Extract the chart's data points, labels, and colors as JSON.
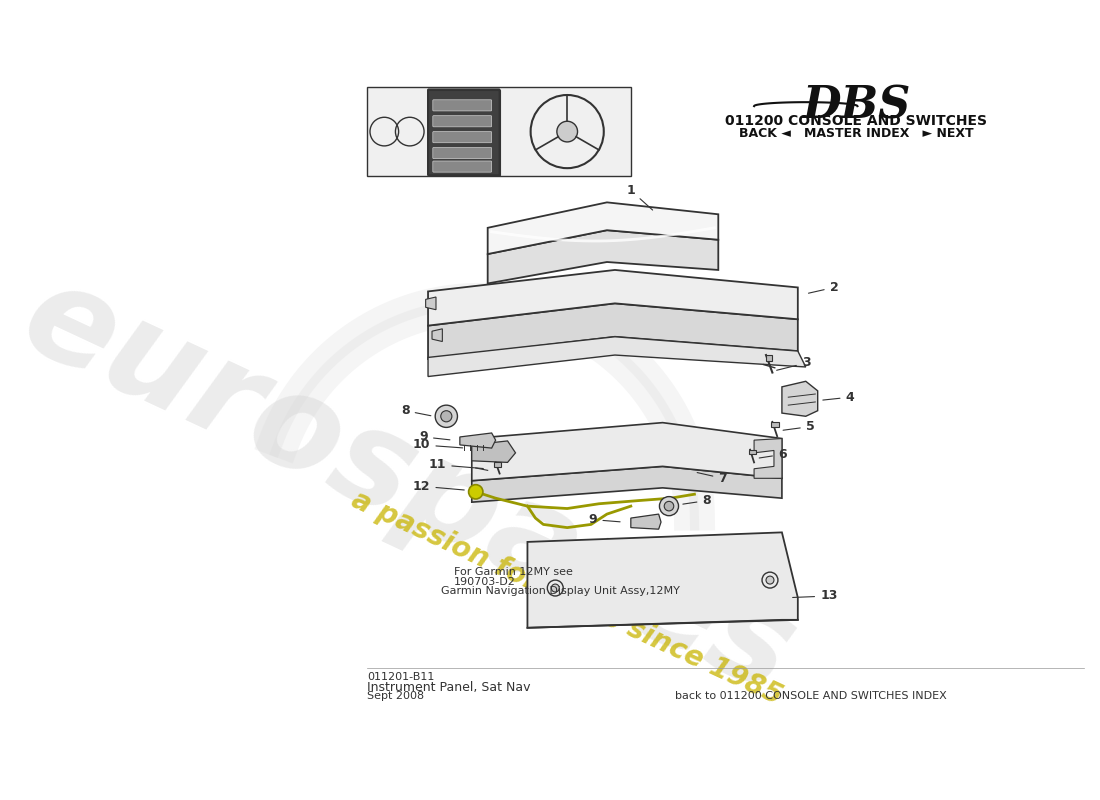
{
  "title_section": "011200 CONSOLE AND SWITCHES",
  "nav_text": "BACK ◄   MASTER INDEX   ► NEXT",
  "footer_left_line1": "011201-B11",
  "footer_left_line2": "Instrument Panel, Sat Nav",
  "footer_left_line3": "Sept 2008",
  "footer_right": "back to 011200 CONSOLE AND SWITCHES INDEX",
  "note_line1": "For Garmin 12MY see",
  "note_line2": "190703-D2",
  "note_line3": "Garmin Navigation Display Unit Assy,12MY",
  "watermark_color_text": "#c8c8c8",
  "watermark_color_slogan": "#c8b400",
  "bg_color": "#ffffff",
  "line_color": "#333333"
}
